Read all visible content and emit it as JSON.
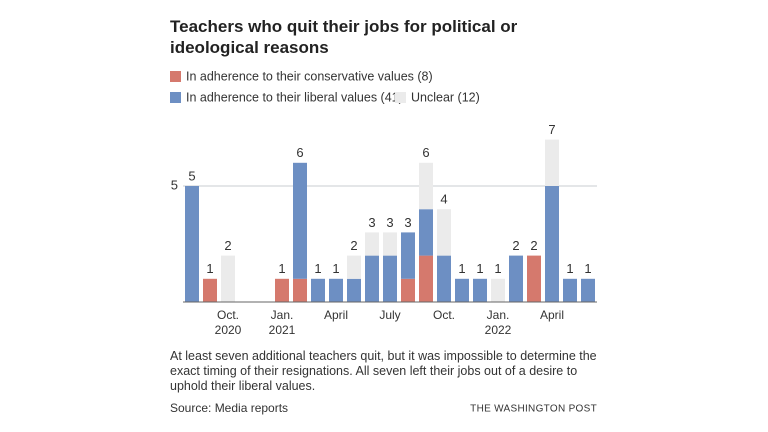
{
  "chart_data": {
    "type": "stacked_bar",
    "title": "Teachers who quit their jobs for political or ideological reasons",
    "categories": [
      null,
      null,
      [
        "Oct.",
        "2020"
      ],
      null,
      null,
      [
        "Jan.",
        "2021"
      ],
      null,
      null,
      [
        "April"
      ],
      null,
      null,
      [
        "July"
      ],
      null,
      null,
      [
        "Oct."
      ],
      null,
      null,
      [
        "Jan.",
        "2022"
      ],
      null,
      null,
      [
        "April"
      ],
      null,
      null
    ],
    "series": [
      {
        "name": "In adherence to their conservative values (8)",
        "color": "#d5796d",
        "values": [
          0,
          1,
          0,
          0,
          0,
          1,
          1,
          0,
          0,
          0,
          0,
          0,
          1,
          2,
          0,
          0,
          0,
          0,
          0,
          2,
          0,
          0,
          0
        ]
      },
      {
        "name": "In adherence to their liberal values (41)",
        "color": "#6d8fc3",
        "values": [
          5,
          0,
          0,
          0,
          0,
          0,
          5,
          1,
          1,
          1,
          2,
          2,
          2,
          2,
          2,
          1,
          1,
          0,
          2,
          0,
          5,
          1,
          1
        ]
      },
      {
        "name": "Unclear (12)",
        "color": "#ebebeb",
        "values": [
          0,
          0,
          2,
          0,
          0,
          0,
          0,
          0,
          0,
          1,
          1,
          1,
          0,
          2,
          2,
          0,
          0,
          1,
          0,
          0,
          2,
          0,
          0
        ]
      }
    ],
    "total_labels": [
      5,
      1,
      2,
      null,
      null,
      1,
      6,
      1,
      1,
      2,
      3,
      3,
      3,
      6,
      4,
      1,
      1,
      1,
      2,
      2,
      7,
      1,
      1
    ],
    "ylim": [
      0,
      7
    ],
    "yticks": [
      5
    ],
    "grid": true,
    "note": "At least seven additional teachers quit, but it was impossible to determine the exact timing of their resignations. All seven left their jobs out of a desire to uphold their liberal values.",
    "source": "Source: Media reports",
    "credit": "THE WASHINGTON POST"
  }
}
